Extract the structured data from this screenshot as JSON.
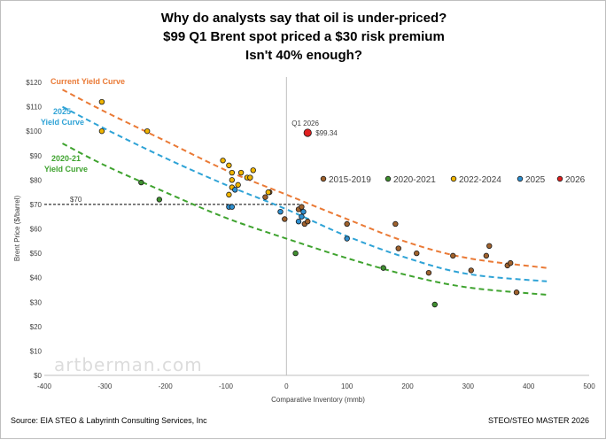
{
  "title_lines": [
    "Why do analysts say that oil is under-priced?",
    "$99 Q1 Brent spot priced a $30 risk premium",
    "Isn't 40% enough?"
  ],
  "source": "Source: EIA STEO & Labyrinth Consulting Services, Inc",
  "footer_right": "STEO/STEO MASTER 2026",
  "watermark": "artberman.com",
  "colors": {
    "2015-2019": "#a0622d",
    "2020-2021": "#3f8f2f",
    "2022-2024": "#f0b400",
    "2025": "#2e8fd0",
    "2026": "#e02020",
    "curve_current": "#ea7a36",
    "curve_2025": "#2fa3d6",
    "curve_2020": "#3fa32f"
  },
  "chart_data": {
    "type": "scatter",
    "title": "Why do analysts say that oil is under-priced? $99 Q1 Brent spot priced a $30 risk premium Isn't 40% enough?",
    "xlabel": "Comparative Inventory (mmb)",
    "ylabel": "Brent Price ($/barrel)",
    "xlim": [
      -400,
      500
    ],
    "ylim": [
      0,
      120
    ],
    "x_ticks": [
      "-400",
      "-300",
      "-200",
      "-100",
      "0",
      "100",
      "200",
      "300",
      "400",
      "500"
    ],
    "y_ticks": [
      "$0",
      "$10",
      "$20",
      "$30",
      "$40",
      "$50",
      "$60",
      "$70",
      "$80",
      "$90",
      "$100",
      "$110",
      "$120"
    ],
    "grid": false,
    "legend_position": "right-middle",
    "series": [
      {
        "name": "2015-2019",
        "points": [
          [
            -35,
            73
          ],
          [
            -28,
            75
          ],
          [
            -3,
            64
          ],
          [
            20,
            68
          ],
          [
            25,
            69
          ],
          [
            30,
            62
          ],
          [
            35,
            63
          ],
          [
            100,
            62
          ],
          [
            180,
            62
          ],
          [
            185,
            52
          ],
          [
            215,
            50
          ],
          [
            235,
            42
          ],
          [
            275,
            49
          ],
          [
            305,
            43
          ],
          [
            330,
            49
          ],
          [
            335,
            53
          ],
          [
            365,
            45
          ],
          [
            370,
            46
          ],
          [
            380,
            34
          ]
        ]
      },
      {
        "name": "2020-2021",
        "points": [
          [
            -240,
            79
          ],
          [
            -210,
            72
          ],
          [
            15,
            50
          ],
          [
            160,
            44
          ],
          [
            245,
            29
          ]
        ]
      },
      {
        "name": "2022-2024",
        "points": [
          [
            -305,
            112
          ],
          [
            -305,
            100
          ],
          [
            -230,
            100
          ],
          [
            -105,
            88
          ],
          [
            -95,
            86
          ],
          [
            -90,
            80
          ],
          [
            -90,
            83
          ],
          [
            -80,
            78
          ],
          [
            -75,
            83
          ],
          [
            -65,
            81
          ],
          [
            -55,
            84
          ],
          [
            -60,
            81
          ],
          [
            -30,
            75
          ],
          [
            -95,
            74
          ],
          [
            -90,
            77
          ]
        ]
      },
      {
        "name": "2025",
        "points": [
          [
            -95,
            69
          ],
          [
            -90,
            69
          ],
          [
            -85,
            76
          ],
          [
            -10,
            67
          ],
          [
            20,
            63
          ],
          [
            25,
            65
          ],
          [
            28,
            67
          ],
          [
            100,
            56
          ]
        ]
      },
      {
        "name": "2026",
        "points": [
          [
            35,
            99.34
          ]
        ]
      }
    ],
    "curves": [
      {
        "name": "Current Yield Curve",
        "x": [
          -370,
          -300,
          -200,
          -100,
          0,
          100,
          200,
          300,
          430
        ],
        "y": [
          117,
          108,
          96,
          84,
          74,
          64,
          54.5,
          48,
          44
        ]
      },
      {
        "name": "2025 Yield Curve",
        "x": [
          -370,
          -300,
          -200,
          -100,
          0,
          100,
          200,
          300,
          430
        ],
        "y": [
          110,
          101,
          89,
          78,
          68,
          57,
          48,
          41.5,
          38.5
        ]
      },
      {
        "name": "2020-21 Yield Curve",
        "x": [
          -370,
          -300,
          -200,
          -100,
          0,
          100,
          200,
          300,
          430
        ],
        "y": [
          95,
          86,
          75,
          64.5,
          56,
          48,
          41,
          36,
          33
        ]
      }
    ],
    "reference_line": {
      "label": "$70",
      "y": 70
    },
    "annotations": [
      {
        "text": "Q1 2026",
        "x": 35,
        "y": 99.34
      },
      {
        "text": "$99.34",
        "x": 35,
        "y": 99.34
      }
    ],
    "legend": [
      "2015-2019",
      "2020-2021",
      "2022-2024",
      "2025",
      "2026"
    ]
  }
}
